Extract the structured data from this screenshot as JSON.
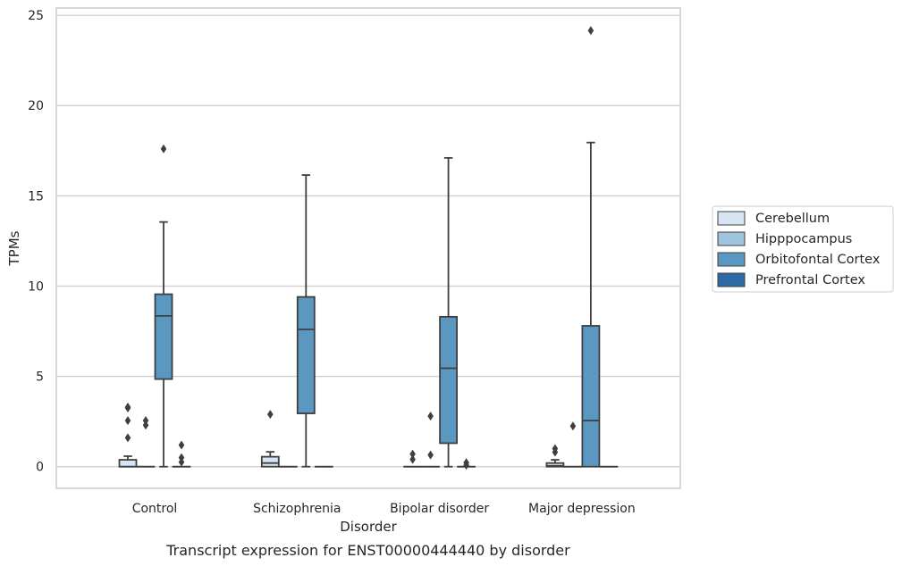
{
  "chart_data": {
    "type": "box",
    "caption": "Transcript expression for ENST00000444440 by disorder",
    "xlabel": "Disorder",
    "ylabel": "TPMs",
    "ylim": [
      -1.2,
      25.4
    ],
    "yticks": [
      "0",
      "5",
      "10",
      "15",
      "20",
      "25"
    ],
    "grid": "horizontal",
    "legend_position": "right",
    "categories": [
      "Control",
      "Schizophrenia",
      "Bipolar disorder",
      "Major depression"
    ],
    "series": [
      {
        "name": "Cerebellum",
        "color": "#d6e5f1",
        "boxes": [
          {
            "whisker_low": 0,
            "q1": 0,
            "median": 0,
            "q3": 0.38,
            "whisker_high": 0.58,
            "outliers": [
              1.6,
              2.55,
              3.25,
              3.3
            ]
          },
          {
            "whisker_low": 0,
            "q1": 0,
            "median": 0.2,
            "q3": 0.55,
            "whisker_high": 0.82,
            "outliers": [
              2.9
            ]
          },
          {
            "whisker_low": 0,
            "q1": 0,
            "median": 0,
            "q3": 0,
            "whisker_high": 0,
            "outliers": [
              0.4,
              0.7
            ]
          },
          {
            "whisker_low": 0,
            "q1": 0,
            "median": 0.05,
            "q3": 0.2,
            "whisker_high": 0.38,
            "outliers": [
              0.8,
              1.0
            ]
          }
        ]
      },
      {
        "name": "Hipppocampus",
        "color": "#9ec4de",
        "boxes": [
          {
            "whisker_low": 0,
            "q1": 0,
            "median": 0,
            "q3": 0,
            "whisker_high": 0,
            "outliers": [
              2.3,
              2.55
            ]
          },
          {
            "whisker_low": 0,
            "q1": 0,
            "median": 0,
            "q3": 0,
            "whisker_high": 0,
            "outliers": []
          },
          {
            "whisker_low": 0,
            "q1": 0,
            "median": 0,
            "q3": 0,
            "whisker_high": 0,
            "outliers": [
              0.65,
              2.8
            ]
          },
          {
            "whisker_low": 0,
            "q1": 0,
            "median": 0,
            "q3": 0,
            "whisker_high": 0,
            "outliers": [
              2.25
            ]
          }
        ]
      },
      {
        "name": "Orbitofontal Cortex",
        "color": "#5a98c2",
        "boxes": [
          {
            "whisker_low": 0,
            "q1": 4.85,
            "median": 8.35,
            "q3": 9.55,
            "whisker_high": 13.55,
            "outliers": [
              17.6
            ]
          },
          {
            "whisker_low": 0,
            "q1": 2.95,
            "median": 7.6,
            "q3": 9.4,
            "whisker_high": 16.15,
            "outliers": []
          },
          {
            "whisker_low": 0,
            "q1": 1.3,
            "median": 5.45,
            "q3": 8.3,
            "whisker_high": 17.1,
            "outliers": []
          },
          {
            "whisker_low": 0,
            "q1": 0,
            "median": 2.55,
            "q3": 7.8,
            "whisker_high": 17.95,
            "outliers": [
              24.15
            ]
          }
        ]
      },
      {
        "name": "Prefrontal Cortex",
        "color": "#2d6aa4",
        "boxes": [
          {
            "whisker_low": 0,
            "q1": 0,
            "median": 0,
            "q3": 0,
            "whisker_high": 0,
            "outliers": [
              0.25,
              0.5,
              1.2
            ]
          },
          {
            "whisker_low": 0,
            "q1": 0,
            "median": 0,
            "q3": 0,
            "whisker_high": 0,
            "outliers": []
          },
          {
            "whisker_low": 0,
            "q1": 0,
            "median": 0,
            "q3": 0,
            "whisker_high": 0,
            "outliers": [
              0.08,
              0.22
            ]
          },
          {
            "whisker_low": 0,
            "q1": 0,
            "median": 0,
            "q3": 0,
            "whisker_high": 0,
            "outliers": []
          }
        ]
      }
    ]
  }
}
